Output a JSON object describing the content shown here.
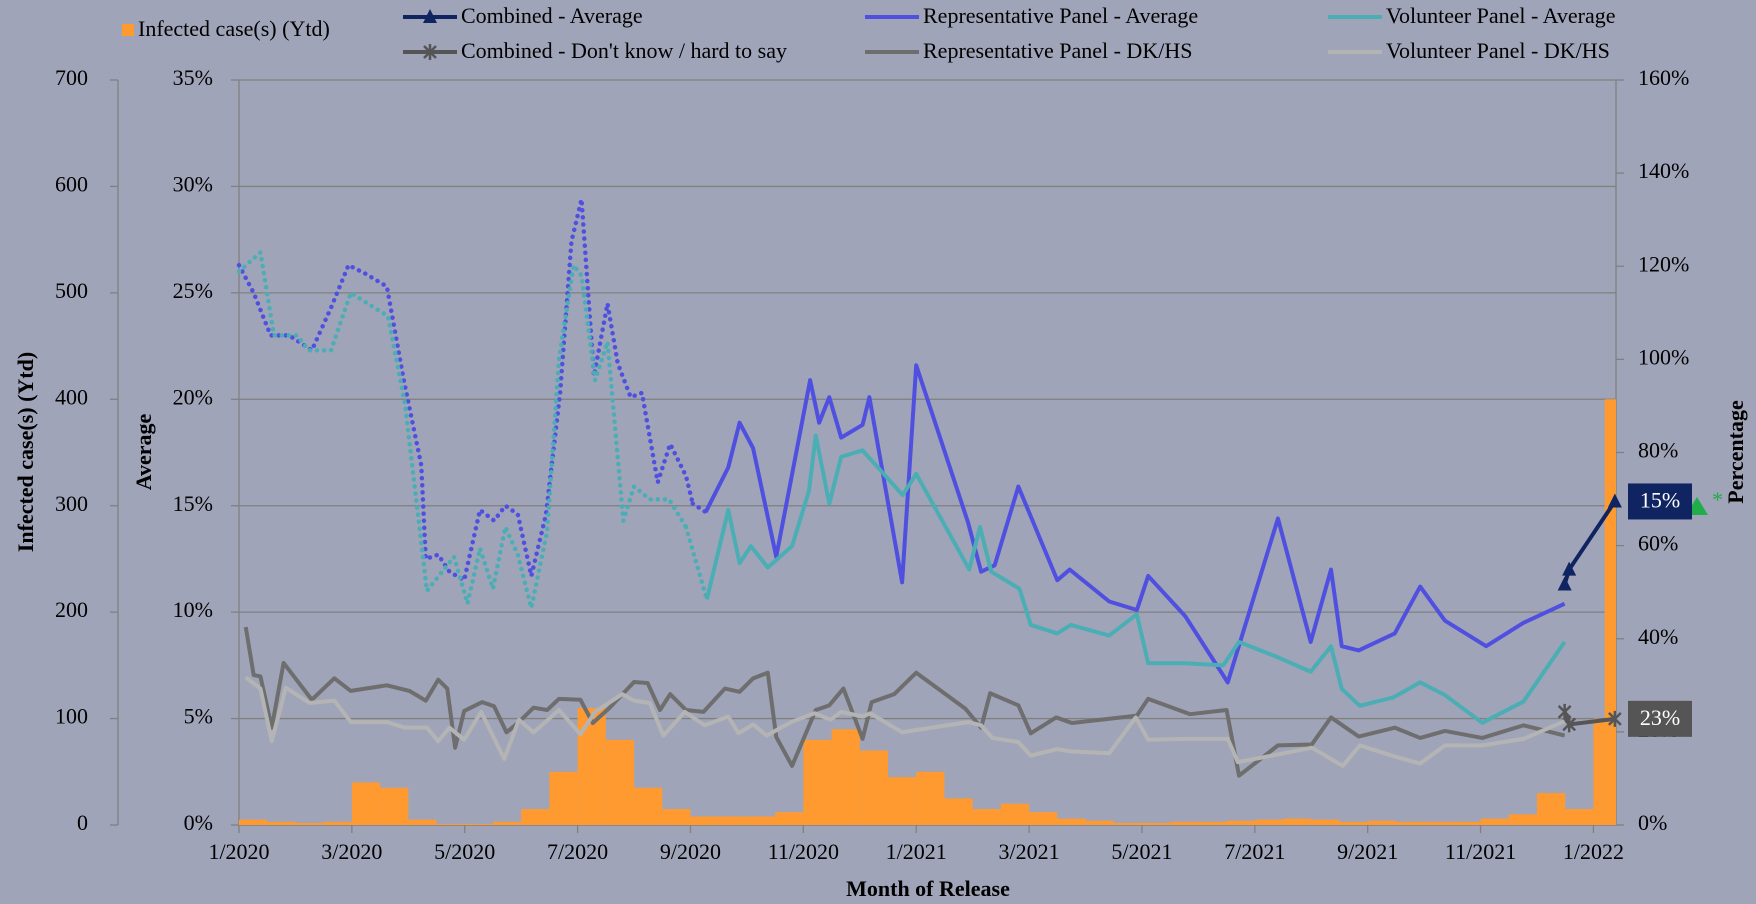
{
  "chart_data": {
    "type": "combo",
    "xlabel": "Month of Release",
    "xlim": [
      0,
      24.4
    ],
    "xticks": [
      {
        "value": 0,
        "label": "1/2020"
      },
      {
        "value": 2,
        "label": "3/2020"
      },
      {
        "value": 4,
        "label": "5/2020"
      },
      {
        "value": 6,
        "label": "7/2020"
      },
      {
        "value": 8,
        "label": "9/2020"
      },
      {
        "value": 10,
        "label": "11/2020"
      },
      {
        "value": 12,
        "label": "1/2021"
      },
      {
        "value": 14,
        "label": "3/2021"
      },
      {
        "value": 16,
        "label": "5/2021"
      },
      {
        "value": 18,
        "label": "7/2021"
      },
      {
        "value": 20,
        "label": "9/2021"
      },
      {
        "value": 22,
        "label": "11/2021"
      },
      {
        "value": 24,
        "label": "1/2022"
      }
    ],
    "ylabel": "Infected case(s) (Ytd)",
    "ylim": [
      0,
      700
    ],
    "yticks": [
      0,
      100,
      200,
      300,
      400,
      500,
      600,
      700
    ],
    "y2label": "Average",
    "y2lim": [
      0,
      35
    ],
    "y2ticks": [
      {
        "value": 0,
        "label": "0%"
      },
      {
        "value": 5,
        "label": "5%"
      },
      {
        "value": 10,
        "label": "10%"
      },
      {
        "value": 15,
        "label": "15%"
      },
      {
        "value": 20,
        "label": "20%"
      },
      {
        "value": 25,
        "label": "25%"
      },
      {
        "value": 30,
        "label": "30%"
      },
      {
        "value": 35,
        "label": "35%"
      }
    ],
    "y3label": "Percentage",
    "y3lim": [
      0,
      160
    ],
    "y3ticks": [
      {
        "value": 0,
        "label": "0%"
      },
      {
        "value": 20,
        "label": "20%"
      },
      {
        "value": 40,
        "label": "40%"
      },
      {
        "value": 60,
        "label": "60%"
      },
      {
        "value": 80,
        "label": "80%"
      },
      {
        "value": 100,
        "label": "100%"
      },
      {
        "value": 120,
        "label": "120%"
      },
      {
        "value": 140,
        "label": "140%"
      },
      {
        "value": 160,
        "label": "160%"
      }
    ],
    "grid": true,
    "legend": "top",
    "note": "*",
    "series": [
      {
        "name": "Infected case(s) (Ytd)",
        "type": "bar",
        "axis": "y",
        "color": "#ff9a30",
        "bins": [
          0,
          0.5,
          1,
          1.5,
          2,
          2.5,
          3,
          3.5,
          4,
          4.5,
          5,
          5.5,
          6,
          6.5,
          7,
          7.5,
          8,
          8.5,
          9,
          9.5,
          10,
          10.5,
          11,
          11.5,
          12,
          12.5,
          13,
          13.5,
          14,
          14.5,
          15,
          15.5,
          16,
          16.5,
          17,
          17.5,
          18,
          18.5,
          19,
          19.5,
          20,
          20.5,
          21,
          21.5,
          22,
          22.5,
          23,
          23.5,
          24,
          24.2,
          24.4
        ],
        "values": [
          5,
          3,
          2,
          3,
          40,
          35,
          5,
          1,
          1,
          3,
          15,
          50,
          110,
          80,
          35,
          15,
          8,
          8,
          8,
          12,
          80,
          90,
          70,
          45,
          50,
          25,
          15,
          20,
          12,
          6,
          4,
          2,
          2,
          3,
          3,
          4,
          5,
          6,
          5,
          3,
          4,
          3,
          3,
          3,
          6,
          10,
          30,
          15,
          100,
          400
        ]
      },
      {
        "name": "Combined - Average",
        "type": "line",
        "axis": "y2",
        "color": "#0f2460",
        "marker": "triangle",
        "x": [
          23.49,
          23.57,
          24.38
        ],
        "values": [
          11.3,
          12.0,
          15.2
        ],
        "value_labels": [
          null,
          null,
          "15%"
        ]
      },
      {
        "name": "Combined - Don't know / hard to say",
        "type": "line",
        "axis": "y3",
        "color": "#555555",
        "marker": "star",
        "x": [
          23.49,
          23.57,
          24.38
        ],
        "values": [
          24.3,
          21.6,
          22.8
        ],
        "value_labels": [
          null,
          null,
          "23%"
        ]
      },
      {
        "name": "Representative Panel - Average",
        "type": "line",
        "axis": "y2",
        "color": "#5050e0",
        "dotted_before_x": 8.2,
        "x": [
          0,
          0.26,
          0.56,
          0.89,
          1.29,
          1.63,
          1.94,
          2.24,
          2.62,
          2.92,
          3.23,
          3.31,
          3.53,
          3.73,
          3.99,
          4.27,
          4.52,
          4.72,
          4.94,
          5.18,
          5.44,
          5.69,
          5.89,
          6.07,
          6.29,
          6.53,
          6.71,
          6.94,
          7.14,
          7.42,
          7.64,
          7.92,
          8.04,
          8.27,
          8.67,
          8.87,
          9.11,
          9.52,
          10.12,
          10.28,
          10.46,
          10.67,
          11.05,
          11.17,
          11.75,
          12.0,
          12.92,
          13.15,
          13.39,
          13.81,
          14.5,
          14.72,
          15.42,
          15.91,
          16.11,
          16.77,
          17.52,
          18.41,
          18.99,
          19.35,
          19.54,
          19.84,
          20.48,
          20.93,
          21.37,
          22.1,
          22.76,
          23.49
        ],
        "values": [
          26.3,
          25.0,
          23.0,
          23.0,
          22.3,
          24.3,
          26.3,
          25.9,
          25.3,
          20.9,
          16.9,
          12.5,
          12.7,
          11.9,
          11.5,
          14.8,
          14.3,
          15.0,
          14.6,
          11.7,
          14.6,
          20.3,
          27.4,
          29.4,
          21.1,
          24.5,
          21.7,
          20.1,
          20.3,
          16.1,
          17.9,
          16.4,
          15.1,
          14.7,
          16.8,
          18.9,
          17.7,
          12.6,
          20.9,
          18.9,
          20.1,
          18.2,
          18.8,
          20.1,
          11.4,
          21.6,
          14.2,
          11.9,
          12.2,
          15.9,
          11.5,
          12.0,
          10.5,
          10.1,
          11.7,
          9.8,
          6.7,
          14.4,
          8.6,
          12.0,
          8.4,
          8.2,
          9.0,
          11.2,
          9.6,
          8.4,
          9.5,
          10.4
        ]
      },
      {
        "name": "Representative Panel - DK/HS",
        "type": "line",
        "axis": "y3",
        "color": "#6e6e6e",
        "x": [
          0.12,
          0.26,
          0.38,
          0.58,
          0.79,
          1.29,
          1.69,
          1.98,
          2.62,
          3.02,
          3.31,
          3.53,
          3.69,
          3.83,
          3.99,
          4.31,
          4.52,
          4.74,
          4.94,
          5.22,
          5.46,
          5.67,
          6.05,
          6.27,
          6.57,
          7.0,
          7.24,
          7.46,
          7.64,
          7.92,
          8.23,
          8.61,
          8.87,
          9.11,
          9.37,
          9.52,
          9.8,
          10.22,
          10.46,
          10.71,
          11.05,
          11.21,
          11.61,
          12.0,
          12.87,
          13.15,
          13.31,
          13.81,
          14.03,
          14.48,
          14.76,
          15.91,
          16.11,
          16.85,
          17.5,
          17.72,
          18.41,
          19.01,
          19.35,
          19.84,
          20.48,
          20.93,
          21.37,
          22.03,
          22.76,
          23.49
        ],
        "values": [
          42.5,
          32.2,
          31.9,
          20.9,
          34.8,
          26.9,
          31.5,
          28.8,
          30.0,
          28.8,
          26.7,
          31.2,
          29.3,
          16.6,
          24.5,
          26.4,
          25.5,
          19.9,
          21.9,
          25.2,
          24.7,
          27.1,
          26.9,
          21.9,
          25.2,
          30.7,
          30.5,
          24.7,
          28.1,
          24.7,
          24.3,
          29.3,
          28.6,
          31.5,
          32.7,
          18.9,
          12.7,
          24.7,
          25.7,
          29.3,
          18.5,
          26.4,
          28.1,
          32.7,
          25.0,
          20.9,
          28.3,
          25.7,
          19.7,
          23.1,
          21.9,
          23.5,
          27.1,
          23.8,
          24.7,
          10.6,
          17.1,
          17.3,
          23.1,
          19.0,
          20.9,
          18.7,
          20.2,
          18.7,
          21.4,
          19.2
        ]
      },
      {
        "name": "Volunteer Panel - Average",
        "type": "line",
        "axis": "y2",
        "color": "#4aaeb4",
        "dotted_before_x": 8.29,
        "x": [
          0,
          0.38,
          0.62,
          1.03,
          1.23,
          1.63,
          1.98,
          2.64,
          2.94,
          3.33,
          3.81,
          4.05,
          4.27,
          4.5,
          4.72,
          4.94,
          5.18,
          5.46,
          5.67,
          5.93,
          6.07,
          6.31,
          6.53,
          6.81,
          7.0,
          7.28,
          7.62,
          7.92,
          8.29,
          8.67,
          8.87,
          9.07,
          9.37,
          9.8,
          10.1,
          10.22,
          10.46,
          10.67,
          11.05,
          11.76,
          12.0,
          12.94,
          13.13,
          13.33,
          13.83,
          14.03,
          14.5,
          14.74,
          15.42,
          15.91,
          16.11,
          16.77,
          17.44,
          17.72,
          18.39,
          18.99,
          19.35,
          19.54,
          19.86,
          20.46,
          20.93,
          21.37,
          22.03,
          22.76,
          23.49
        ],
        "values": [
          26.0,
          26.9,
          23.0,
          23.0,
          22.3,
          22.3,
          25.0,
          23.9,
          19.8,
          11.0,
          12.6,
          10.4,
          13.0,
          11.1,
          14.0,
          12.7,
          10.2,
          13.8,
          21.9,
          26.3,
          25.8,
          20.9,
          22.7,
          14.3,
          15.9,
          15.3,
          15.3,
          14.0,
          10.6,
          14.8,
          12.3,
          13.1,
          12.1,
          13.1,
          15.7,
          18.3,
          15.1,
          17.3,
          17.6,
          15.5,
          16.5,
          12.0,
          14.0,
          11.9,
          11.1,
          9.4,
          9.0,
          9.4,
          8.9,
          9.9,
          7.6,
          7.6,
          7.5,
          8.6,
          7.9,
          7.2,
          8.4,
          6.4,
          5.6,
          6.0,
          6.7,
          6.1,
          4.8,
          5.8,
          8.6
        ]
      },
      {
        "name": "Volunteer Panel - DK/HS",
        "type": "line",
        "axis": "y3",
        "color": "#b4b4b4",
        "x": [
          0.12,
          0.38,
          0.58,
          0.83,
          1.25,
          1.69,
          1.98,
          2.62,
          2.94,
          3.33,
          3.53,
          3.73,
          3.99,
          4.29,
          4.7,
          4.96,
          5.22,
          5.67,
          6.05,
          6.31,
          6.79,
          7.0,
          7.28,
          7.52,
          7.9,
          8.25,
          8.67,
          8.85,
          9.11,
          9.35,
          9.78,
          10.2,
          10.48,
          10.67,
          11.05,
          11.19,
          11.75,
          12.0,
          12.92,
          13.15,
          13.35,
          13.81,
          14.03,
          14.5,
          14.74,
          15.42,
          15.89,
          16.11,
          16.77,
          17.52,
          17.7,
          18.39,
          19.01,
          19.56,
          19.86,
          20.48,
          20.93,
          21.37,
          22.03,
          22.76,
          23.49
        ],
        "values": [
          31.7,
          29.3,
          18.0,
          29.5,
          26.2,
          26.7,
          22.1,
          22.1,
          20.9,
          20.9,
          18.0,
          20.9,
          18.3,
          24.3,
          14.2,
          22.6,
          19.9,
          24.7,
          19.5,
          24.3,
          28.1,
          26.7,
          26.2,
          19.2,
          24.3,
          21.4,
          23.3,
          19.7,
          21.6,
          19.2,
          22.1,
          24.0,
          22.6,
          24.3,
          23.3,
          24.0,
          19.9,
          20.4,
          22.1,
          21.4,
          18.7,
          17.8,
          14.9,
          16.3,
          15.8,
          15.4,
          23.1,
          18.3,
          18.5,
          18.5,
          13.5,
          15.1,
          16.6,
          12.7,
          17.1,
          14.7,
          13.2,
          17.1,
          17.1,
          18.5,
          22.3
        ]
      }
    ]
  }
}
